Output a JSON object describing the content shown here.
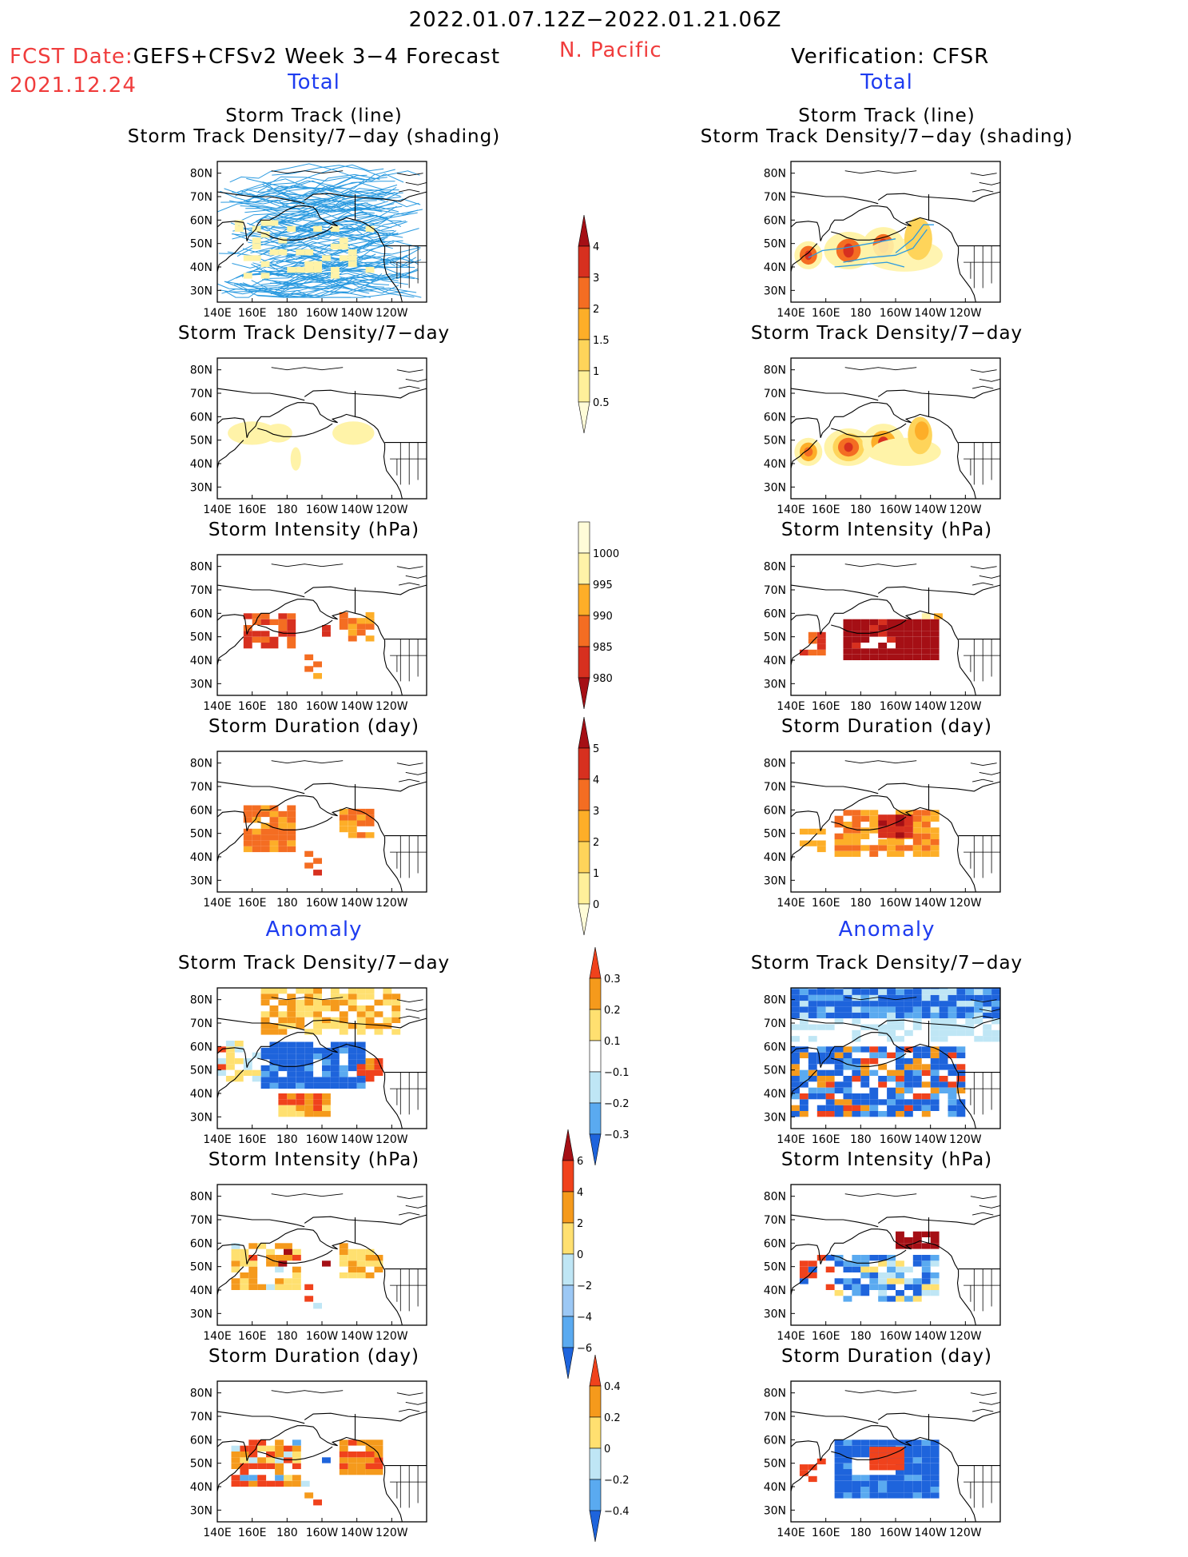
{
  "header": {
    "date_range": "2022.01.07.12Z−2022.01.21.06Z",
    "region": "N. Pacific",
    "fcst_label": "FCST Date:",
    "fcst_model": "GEFS+CFSv2 Week 3−4 Forecast",
    "fcst_date": "2021.12.24",
    "verification": "Verification: CFSR",
    "left_total": "Total",
    "right_total": "Total",
    "left_anomaly": "Anomaly",
    "right_anomaly": "Anomaly"
  },
  "titles": {
    "track_line": "Storm Track (line)",
    "track_shading": "Storm Track Density/7−day (shading)",
    "density": "Storm Track Density/7−day",
    "intensity": "Storm Intensity (hPa)",
    "duration": "Storm Duration (day)"
  },
  "map_axes": {
    "lat_labels": [
      "80N",
      "70N",
      "60N",
      "50N",
      "40N",
      "30N"
    ],
    "lon_labels": [
      "140E",
      "160E",
      "180",
      "160W",
      "140W",
      "120W"
    ]
  },
  "colorbars": {
    "density_total": {
      "labels": [
        "4",
        "3",
        "2",
        "1.5",
        "1",
        "0.5"
      ],
      "colors": [
        "#a50f15",
        "#d7301f",
        "#f46d22",
        "#fdae28",
        "#fed45a",
        "#fff09a",
        "#fffcd8"
      ]
    },
    "intensity_total": {
      "labels": [
        "1000",
        "995",
        "990",
        "985",
        "980"
      ],
      "colors": [
        "#fffcd8",
        "#fff3a8",
        "#fdae28",
        "#f46d22",
        "#d7301f",
        "#a50f15"
      ]
    },
    "duration_total": {
      "labels": [
        "5",
        "4",
        "3",
        "2",
        "1",
        "0"
      ],
      "colors": [
        "#a50f15",
        "#d7301f",
        "#f46d22",
        "#fdae28",
        "#fed45a",
        "#fff09a",
        "#fffcd8"
      ]
    },
    "density_anom": {
      "labels": [
        "0.3",
        "0.2",
        "0.1",
        "−0.1",
        "−0.2",
        "−0.3"
      ],
      "colors": [
        "#f0421c",
        "#f59a1c",
        "#ffe070",
        "#ffffff",
        "#bfe6f5",
        "#5aaaf0",
        "#1e64dc"
      ]
    },
    "intensity_anom": {
      "labels": [
        "6",
        "4",
        "2",
        "0",
        "−2",
        "−4",
        "−6"
      ],
      "colors": [
        "#a50f15",
        "#f0421c",
        "#f59a1c",
        "#ffe070",
        "#bfe6f5",
        "#9cc8f5",
        "#5aaaf0",
        "#1e64dc"
      ]
    },
    "duration_anom": {
      "labels": [
        "0.4",
        "0.2",
        "0",
        "−0.2",
        "−0.4"
      ],
      "colors": [
        "#f0421c",
        "#f59a1c",
        "#ffe070",
        "#bfe6f5",
        "#5aaaf0",
        "#1e64dc"
      ]
    }
  },
  "colors": {
    "title_red": "#f03c3c",
    "title_blue": "#1e3cf0",
    "track_line": "#2a9ae0"
  }
}
